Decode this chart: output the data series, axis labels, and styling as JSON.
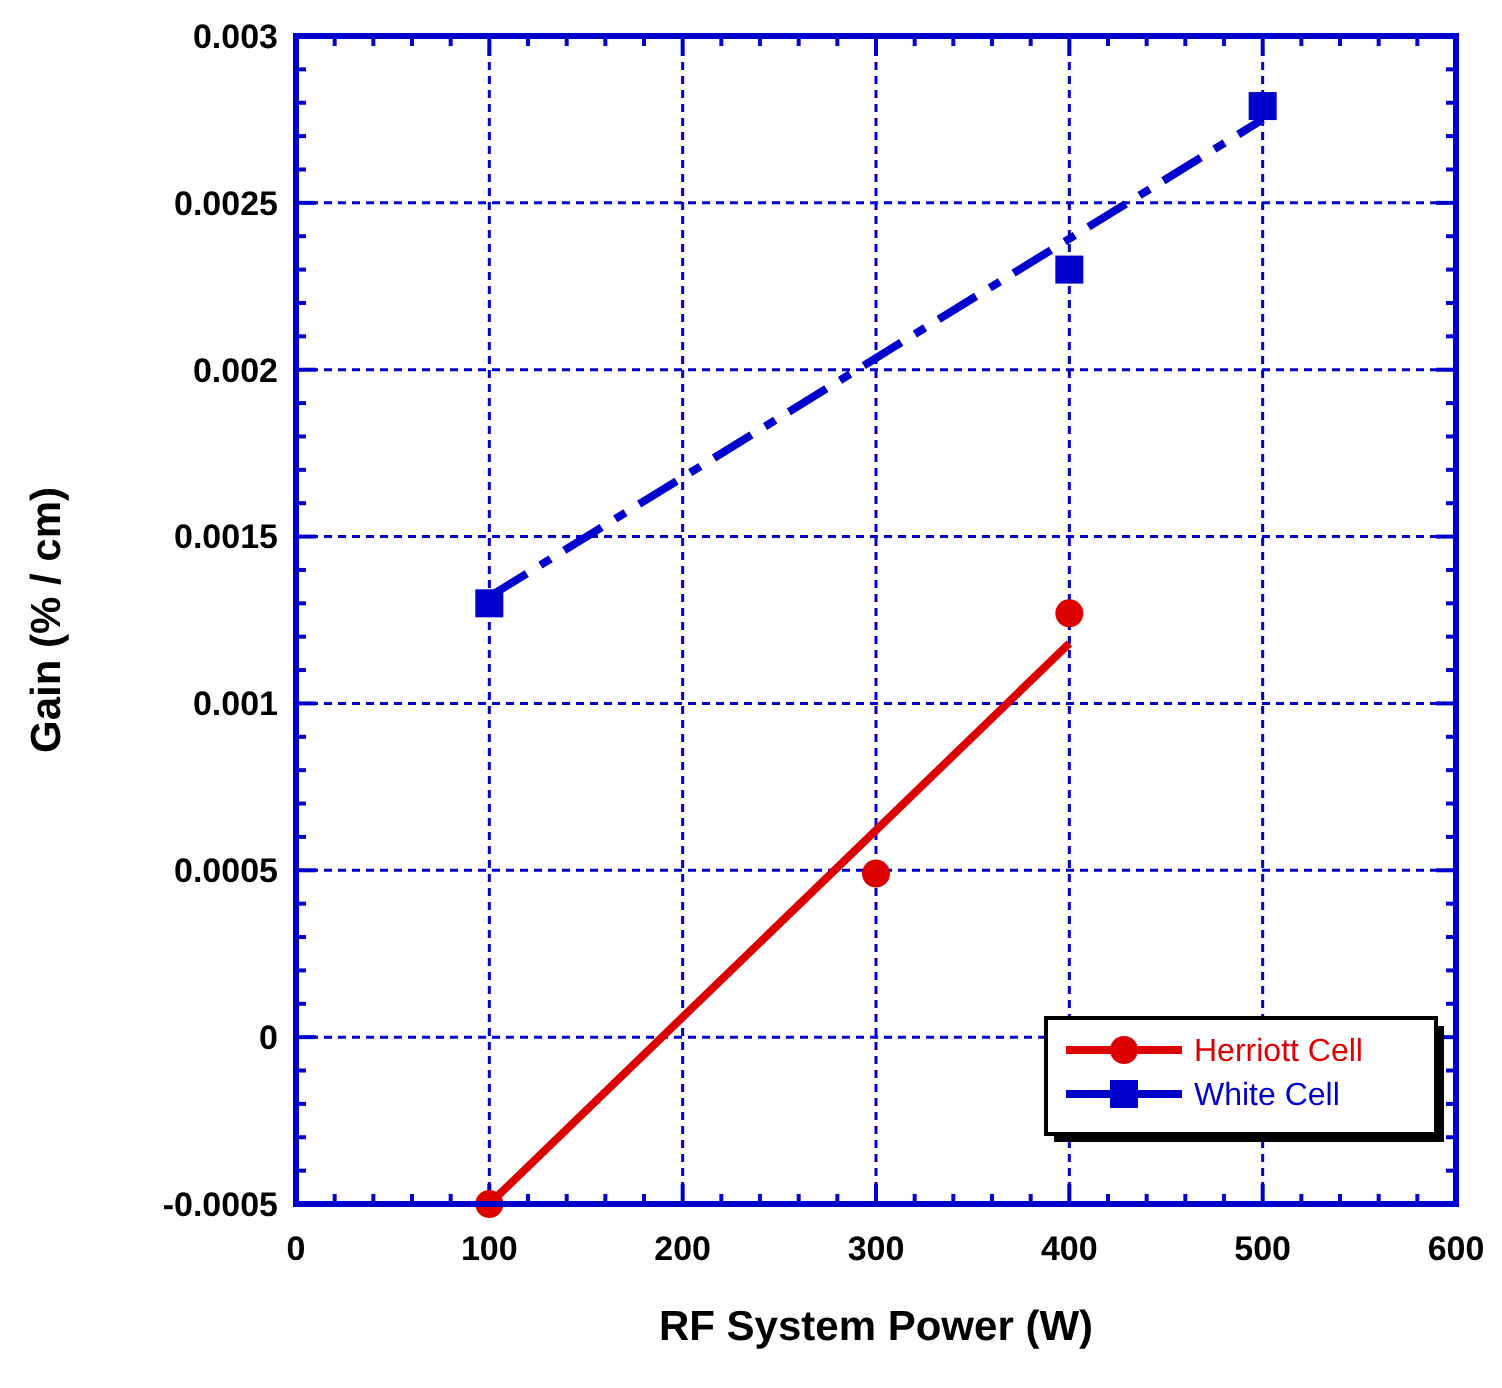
{
  "chart_data": {
    "type": "scatter",
    "xlabel": "RF System Power (W)",
    "ylabel": "Gain (% / cm)",
    "xlim": [
      0,
      600
    ],
    "xticks": [
      0,
      100,
      200,
      300,
      400,
      500,
      600
    ],
    "ylim": [
      -0.0005,
      0.003
    ],
    "yticks": [
      -0.0005,
      0,
      0.0005,
      0.001,
      0.0015,
      0.002,
      0.0025,
      0.003
    ],
    "grid": true,
    "legend": "bottom right",
    "series": [
      {
        "name": "Herriott Cell",
        "marker": "circle",
        "color": "#dd0000",
        "x": [
          100,
          300,
          400
        ],
        "values": [
          -0.0005,
          0.00049,
          0.00127
        ]
      },
      {
        "type": "line",
        "marker": "none",
        "line_style": "solid",
        "color": "#dd0000",
        "x": [
          100,
          400
        ],
        "values": [
          -0.0005,
          0.00118
        ]
      },
      {
        "name": "White Cell",
        "marker": "square",
        "color": "#0000cc",
        "x": [
          100,
          400,
          500
        ],
        "values": [
          0.0013,
          0.0023,
          0.00279
        ]
      },
      {
        "type": "line",
        "marker": "none",
        "line_style": "dashed",
        "color": "#0000cc",
        "x": [
          100,
          500
        ],
        "values": [
          0.00132,
          0.00275
        ]
      }
    ]
  }
}
